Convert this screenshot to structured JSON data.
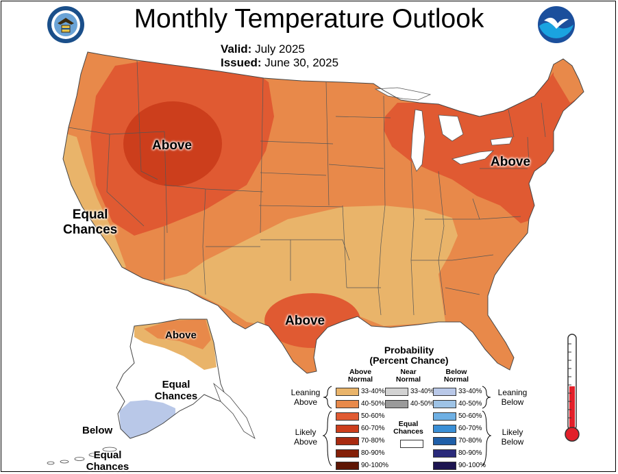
{
  "header": {
    "title": "Monthly Temperature Outlook",
    "valid_label": "Valid:",
    "valid_value": "July 2025",
    "issued_label": "Issued:",
    "issued_value": "June 30, 2025"
  },
  "icons": {
    "left_logo": "doc-seal-icon",
    "right_logo": "noaa-logo-icon",
    "thermometer": "thermometer-icon"
  },
  "map_labels": {
    "west": "Above",
    "west_coast_1": "Equal",
    "west_coast_2": "Chances",
    "texas": "Above",
    "northeast": "Above",
    "alaska_north": "Above",
    "alaska_mid_1": "Equal",
    "alaska_mid_2": "Chances",
    "alaska_sw": "Below",
    "alaska_aleut_1": "Equal",
    "alaska_aleut_2": "Chances"
  },
  "legend": {
    "title_1": "Probability",
    "title_2": "(Percent Chance)",
    "col_above_1": "Above",
    "col_above_2": "Normal",
    "col_near_1": "Near",
    "col_near_2": "Normal",
    "col_below_1": "Below",
    "col_below_2": "Normal",
    "leaning_above_1": "Leaning",
    "leaning_above_2": "Above",
    "likely_above_1": "Likely",
    "likely_above_2": "Above",
    "leaning_below_1": "Leaning",
    "leaning_below_2": "Below",
    "likely_below_1": "Likely",
    "likely_below_2": "Below",
    "equal_1": "Equal",
    "equal_2": "Chances",
    "above": [
      {
        "label": "33-40%",
        "color": "#e9b46a"
      },
      {
        "label": "40-50%",
        "color": "#e8894a"
      },
      {
        "label": "50-60%",
        "color": "#e05a32"
      },
      {
        "label": "60-70%",
        "color": "#cc3e1c"
      },
      {
        "label": "70-80%",
        "color": "#a82a10"
      },
      {
        "label": "80-90%",
        "color": "#842008"
      },
      {
        "label": "90-100%",
        "color": "#5e1604"
      }
    ],
    "near": [
      {
        "label": "33-40%",
        "color": "#d2d2d2"
      },
      {
        "label": "40-50%",
        "color": "#9a9a9a"
      }
    ],
    "below": [
      {
        "label": "33-40%",
        "color": "#b9c8e8"
      },
      {
        "label": "40-50%",
        "color": "#9ec3e6"
      },
      {
        "label": "50-60%",
        "color": "#6eb0e4"
      },
      {
        "label": "60-70%",
        "color": "#3a8fd6"
      },
      {
        "label": "70-80%",
        "color": "#1f5fa8"
      },
      {
        "label": "80-90%",
        "color": "#2a2a7a"
      },
      {
        "label": "90-100%",
        "color": "#1c1450"
      }
    ]
  },
  "map_colors": {
    "lean": "#e9b46a",
    "above_40": "#e8894a",
    "above_50": "#e05a32",
    "above_60": "#cc3e1c",
    "below_33": "#b9c8e8"
  }
}
